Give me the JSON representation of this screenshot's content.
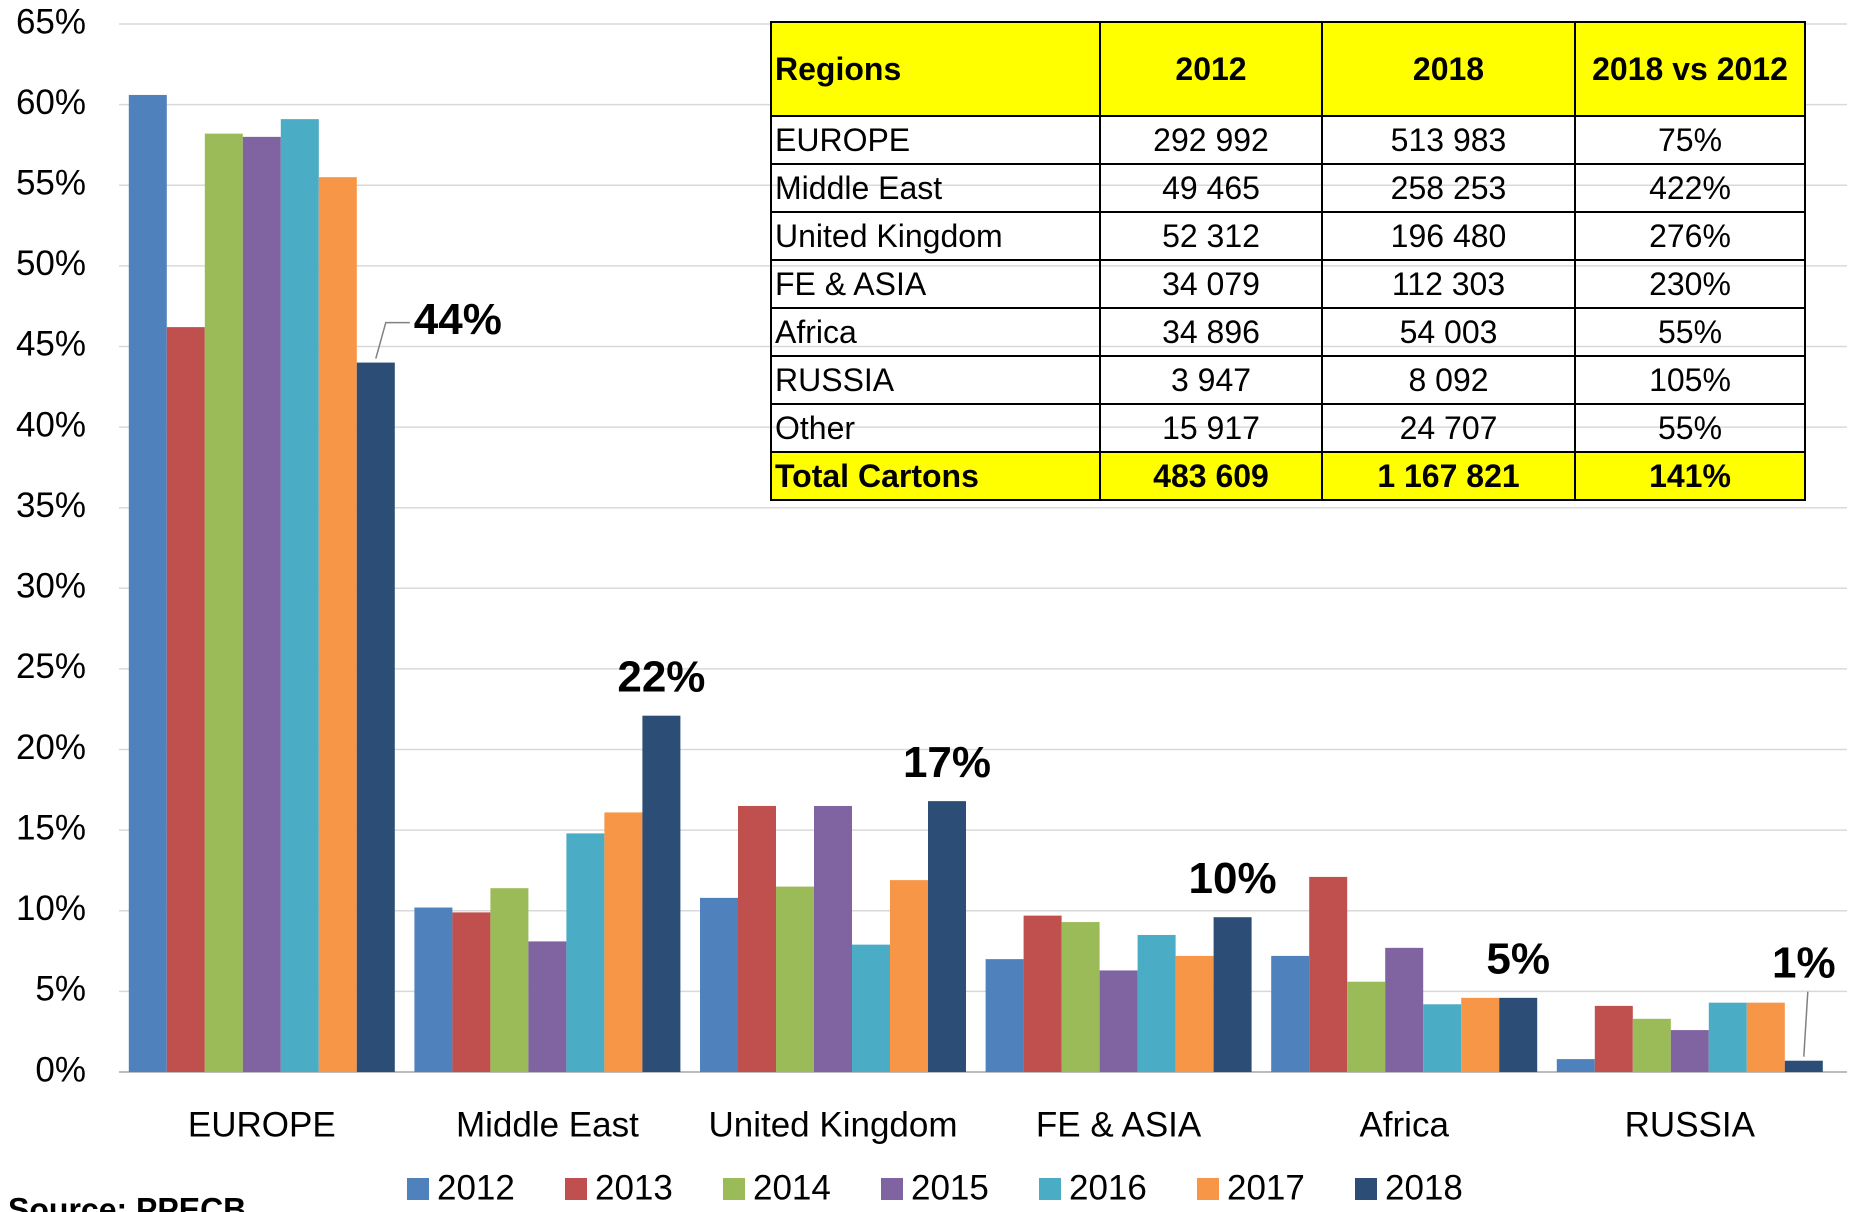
{
  "chart_data": {
    "type": "bar",
    "categories": [
      "EUROPE",
      "Middle East",
      "United Kingdom",
      "FE & ASIA",
      "Africa",
      "RUSSIA"
    ],
    "series": [
      {
        "name": "2012",
        "color": "#4f81bd",
        "values": [
          60.6,
          10.2,
          10.8,
          7.0,
          7.2,
          0.8
        ]
      },
      {
        "name": "2013",
        "color": "#c0504d",
        "values": [
          46.2,
          9.9,
          16.5,
          9.7,
          12.1,
          4.1
        ]
      },
      {
        "name": "2014",
        "color": "#9bbb59",
        "values": [
          58.2,
          11.4,
          11.5,
          9.3,
          5.6,
          3.3
        ]
      },
      {
        "name": "2015",
        "color": "#8064a2",
        "values": [
          58.0,
          8.1,
          16.5,
          6.3,
          7.7,
          2.6
        ]
      },
      {
        "name": "2016",
        "color": "#4bacc6",
        "values": [
          59.1,
          14.8,
          7.9,
          8.5,
          4.2,
          4.3
        ]
      },
      {
        "name": "2017",
        "color": "#f79646",
        "values": [
          55.5,
          16.1,
          11.9,
          7.2,
          4.6,
          4.3
        ]
      },
      {
        "name": "2018",
        "color": "#2c4d75",
        "values": [
          44.0,
          22.1,
          16.8,
          9.6,
          4.6,
          0.7
        ],
        "value_labels": [
          "44%",
          "22%",
          "17%",
          "10%",
          "5%",
          "1%"
        ]
      }
    ],
    "ylim": [
      0,
      65
    ],
    "yticks": [
      {
        "value": 0,
        "label": "0%"
      },
      {
        "value": 5,
        "label": "5%"
      },
      {
        "value": 10,
        "label": "10%"
      },
      {
        "value": 15,
        "label": "15%"
      },
      {
        "value": 20,
        "label": "20%"
      },
      {
        "value": 25,
        "label": "25%"
      },
      {
        "value": 30,
        "label": "30%"
      },
      {
        "value": 35,
        "label": "35%"
      },
      {
        "value": 40,
        "label": "40%"
      },
      {
        "value": 45,
        "label": "45%"
      },
      {
        "value": 50,
        "label": "50%"
      },
      {
        "value": 55,
        "label": "55%"
      },
      {
        "value": 60,
        "label": "60%"
      },
      {
        "value": 65,
        "label": "65%"
      }
    ],
    "grid": true,
    "legend": "bottom"
  },
  "table": {
    "header": [
      "Regions",
      "2012",
      "2018",
      "2018 vs 2012"
    ],
    "rows": [
      [
        "EUROPE",
        "292 992",
        "513 983",
        "75%"
      ],
      [
        "Middle East",
        "49 465",
        "258 253",
        "422%"
      ],
      [
        "United Kingdom",
        "52 312",
        "196 480",
        "276%"
      ],
      [
        "FE & ASIA",
        "34 079",
        "112 303",
        "230%"
      ],
      [
        "Africa",
        "34 896",
        "54 003",
        "55%"
      ],
      [
        "RUSSIA",
        "3 947",
        "8 092",
        "105%"
      ],
      [
        "Other",
        "15 917",
        "24 707",
        "55%"
      ],
      [
        "Total Cartons",
        "483 609",
        "1 167 821",
        "141%"
      ]
    ]
  },
  "source": "Source: PPECB"
}
